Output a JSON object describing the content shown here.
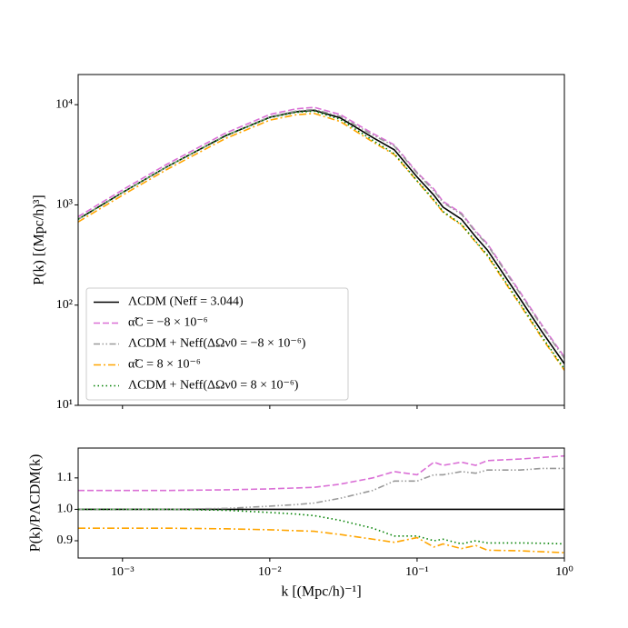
{
  "chart_data": [
    {
      "type": "line",
      "xscale": "log",
      "yscale": "log",
      "ylabel": "P(k) [(Mpc/h)³]",
      "x": [
        0.0005,
        0.001,
        0.002,
        0.005,
        0.01,
        0.015,
        0.02,
        0.03,
        0.05,
        0.07,
        0.1,
        0.13,
        0.15,
        0.2,
        0.25,
        0.3,
        0.5,
        0.7,
        1.0
      ],
      "series": [
        {
          "name": "ΛCDM (Neff = 3.044)",
          "color": "#000000",
          "linestyle": "solid",
          "values": [
            720,
            1330,
            2400,
            4900,
            7500,
            8500,
            8800,
            7400,
            4700,
            3550,
            1900,
            1250,
            950,
            720,
            480,
            355,
            116,
            55,
            26
          ]
        },
        {
          "name": "α̃C = −8 × 10⁻⁶",
          "color": "#da70d6",
          "linestyle": "dashed",
          "values": [
            763,
            1410,
            2544,
            5204,
            7988,
            9078,
            9416,
            7992,
            5170,
            3976,
            2109,
            1438,
            1083,
            828,
            547,
            410,
            135,
            64,
            30.4
          ]
        },
        {
          "name": "ΛCDM + Neff(ΔΩν0 = −8 × 10⁻⁶)",
          "color": "#999999",
          "linestyle": "dashdotdot",
          "values": [
            720,
            1330,
            2400,
            4915,
            7575,
            8628,
            8976,
            7659,
            4982,
            3870,
            2071,
            1388,
            1055,
            806,
            535,
            399,
            131,
            62.2,
            29.4
          ]
        },
        {
          "name": "α̃C = 8 × 10⁻⁶",
          "color": "#ffa500",
          "linestyle": "dashdot",
          "values": [
            677,
            1250,
            2256,
            4596,
            7013,
            7922,
            8184,
            6808,
            4254,
            3177,
            1729,
            1100,
            846,
            630,
            425,
            309,
            101,
            47.6,
            22.4
          ]
        },
        {
          "name": "ΛCDM + Neff(ΔΩν0 = 8 × 10⁻⁶)",
          "color": "#008000",
          "linestyle": "dotted",
          "values": [
            720,
            1330,
            2400,
            4885,
            7425,
            8373,
            8624,
            7141,
            4418,
            3248,
            1739,
            1125,
            860,
            641,
            432,
            317,
            104,
            49.1,
            23.1
          ]
        }
      ],
      "xlim": [
        0.0005,
        1
      ],
      "ylim": [
        10,
        20000
      ],
      "xticks": [
        0.001,
        0.01,
        0.1,
        1
      ],
      "yticks": [
        {
          "value": 10,
          "label": "10¹"
        },
        {
          "value": 100,
          "label": "10²"
        },
        {
          "value": 1000,
          "label": "10³"
        },
        {
          "value": 10000,
          "label": "10⁴"
        }
      ],
      "legend": "lower left"
    },
    {
      "type": "line",
      "xscale": "log",
      "yscale": "linear",
      "xlabel": "k [(Mpc/h)⁻¹]",
      "ylabel": "P(k)/PΛCDM(k)",
      "x": [
        0.0005,
        0.001,
        0.002,
        0.005,
        0.01,
        0.015,
        0.02,
        0.03,
        0.05,
        0.07,
        0.1,
        0.13,
        0.15,
        0.2,
        0.25,
        0.3,
        0.5,
        0.7,
        1.0
      ],
      "series": [
        {
          "color": "#000000",
          "linestyle": "solid",
          "values": [
            1,
            1,
            1,
            1,
            1,
            1,
            1,
            1,
            1,
            1,
            1,
            1,
            1,
            1,
            1,
            1,
            1,
            1,
            1
          ]
        },
        {
          "color": "#da70d6",
          "linestyle": "dashed",
          "values": [
            1.06,
            1.06,
            1.06,
            1.062,
            1.065,
            1.068,
            1.07,
            1.08,
            1.1,
            1.12,
            1.11,
            1.15,
            1.14,
            1.15,
            1.14,
            1.155,
            1.16,
            1.165,
            1.17
          ]
        },
        {
          "color": "#999999",
          "linestyle": "dashdotdot",
          "values": [
            1,
            1,
            1,
            1.003,
            1.01,
            1.015,
            1.02,
            1.035,
            1.06,
            1.09,
            1.09,
            1.11,
            1.11,
            1.12,
            1.115,
            1.125,
            1.125,
            1.13,
            1.13
          ]
        },
        {
          "color": "#ffa500",
          "linestyle": "dashdot",
          "values": [
            0.94,
            0.94,
            0.94,
            0.938,
            0.935,
            0.932,
            0.93,
            0.92,
            0.905,
            0.895,
            0.91,
            0.88,
            0.89,
            0.875,
            0.885,
            0.87,
            0.868,
            0.865,
            0.862
          ]
        },
        {
          "color": "#008000",
          "linestyle": "dotted",
          "values": [
            1,
            1,
            1,
            0.997,
            0.99,
            0.985,
            0.98,
            0.965,
            0.94,
            0.915,
            0.915,
            0.9,
            0.905,
            0.89,
            0.9,
            0.893,
            0.893,
            0.892,
            0.89
          ]
        }
      ],
      "xlim": [
        0.0005,
        1
      ],
      "ylim": [
        0.845,
        1.195
      ],
      "xticks": [
        {
          "value": 0.001,
          "label": "10⁻³"
        },
        {
          "value": 0.01,
          "label": "10⁻²"
        },
        {
          "value": 0.1,
          "label": "10⁻¹"
        },
        {
          "value": 1,
          "label": "10⁰"
        }
      ],
      "yticks": [
        0.9,
        {
          "value": 1,
          "label": "1.0"
        },
        1.1
      ]
    }
  ]
}
